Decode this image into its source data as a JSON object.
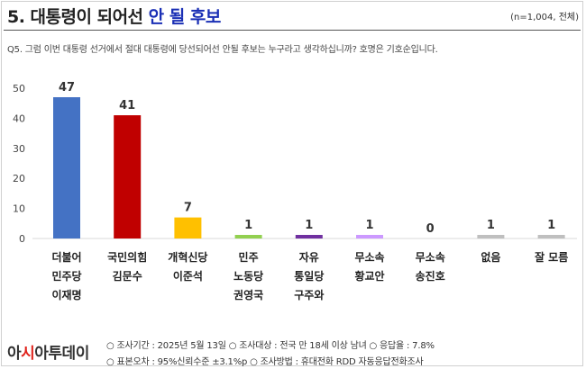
{
  "header": {
    "title_main": "5. 대통령이 되어선 ",
    "title_highlight": "안 될 후보",
    "sample_note": "(n=1,004, 전체)",
    "question": "Q5. 그럼 이번 대통령 선거에서 절대 대통령에 당선되어선 안될 후보는 누구라고 생각하십니까? 호명은 기호순입니다."
  },
  "chart_data": {
    "type": "bar",
    "title": "",
    "xlabel": "",
    "ylabel": "",
    "ylim": [
      0,
      50
    ],
    "yticks": [
      0,
      10,
      20,
      30,
      40,
      50
    ],
    "grid": false,
    "categories": [
      [
        "더불어",
        "민주당",
        "이재명"
      ],
      [
        "국민의힘",
        "김문수"
      ],
      [
        "개혁신당",
        "이준석"
      ],
      [
        "민주",
        "노동당",
        "권영국"
      ],
      [
        "자유",
        "통일당",
        "구주와"
      ],
      [
        "무소속",
        "황교안"
      ],
      [
        "무소속",
        "송진호"
      ],
      [
        "없음"
      ],
      [
        "잘 모름"
      ]
    ],
    "values": [
      47,
      41,
      7,
      1,
      1,
      1,
      0,
      1,
      1
    ],
    "colors": [
      "#4472c4",
      "#c00000",
      "#ffc000",
      "#92d050",
      "#7030a0",
      "#cc99ff",
      "#999999",
      "#bfbfbf",
      "#bfbfbf"
    ]
  },
  "footer": {
    "logo_left": "아",
    "logo_accent": "시",
    "logo_right": "아투데이",
    "line1": "○ 조사기간 : 2025년 5월 13일 ○ 조사대상 : 전국 만 18세 이상 남녀 ○ 응답율 : 7.8%",
    "line2": "○ 표본오차 : 95%신뢰수준 ±3.1%p ○ 조사방법 : 휴대전화 RDD 자동응답전화조사"
  }
}
